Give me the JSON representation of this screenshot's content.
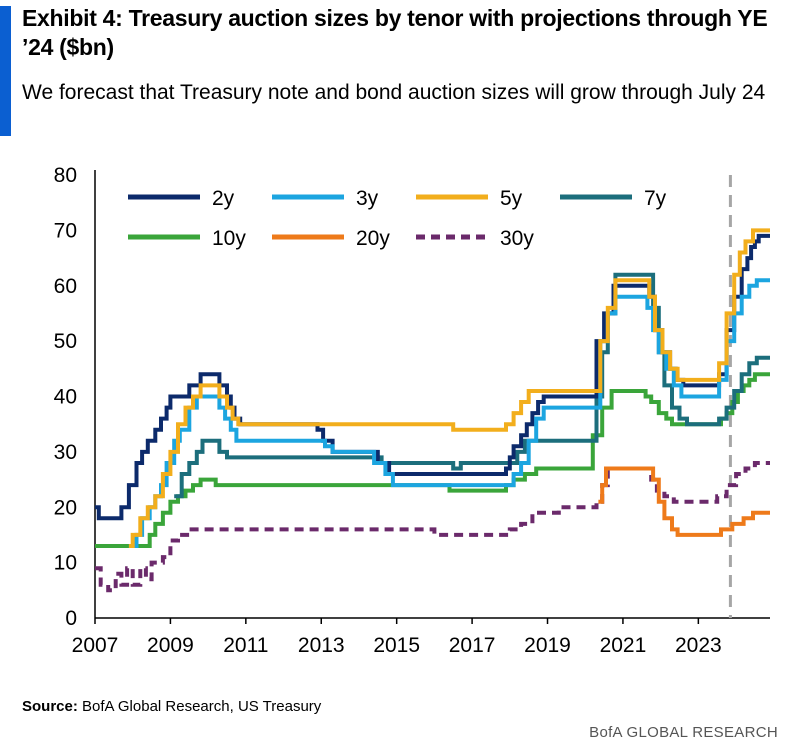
{
  "header": {
    "title": "Exhibit 4: Treasury auction sizes by tenor with projections through YE ’24 ($bn)",
    "subtitle": "We forecast that Treasury note and bond auction sizes will grow through July 24"
  },
  "footer": {
    "source_label": "Source:",
    "source_text": "BofA Global Research, US Treasury",
    "brand": "BofA GLOBAL RESEARCH"
  },
  "chart_data": {
    "type": "line",
    "title": "",
    "xlabel": "",
    "ylabel": "",
    "xlim": [
      2007,
      2024.9
    ],
    "ylim": [
      0,
      80
    ],
    "x_ticks": [
      2007,
      2009,
      2011,
      2013,
      2015,
      2017,
      2019,
      2021,
      2023
    ],
    "y_ticks": [
      0,
      10,
      20,
      30,
      40,
      50,
      60,
      70,
      80
    ],
    "grid": false,
    "legend_position": "top",
    "projection_marker_x": 2023.85,
    "series": [
      {
        "name": "2y",
        "color": "#0c2a6b",
        "dash": false,
        "steps": [
          [
            2007,
            20
          ],
          [
            2007.1,
            18
          ],
          [
            2007.7,
            20
          ],
          [
            2007.9,
            24
          ],
          [
            2008.1,
            28
          ],
          [
            2008.25,
            30
          ],
          [
            2008.4,
            32
          ],
          [
            2008.6,
            34
          ],
          [
            2008.75,
            36
          ],
          [
            2008.9,
            38
          ],
          [
            2009.0,
            40
          ],
          [
            2009.5,
            42
          ],
          [
            2009.8,
            44
          ],
          [
            2010.3,
            42
          ],
          [
            2010.5,
            40
          ],
          [
            2010.6,
            38
          ],
          [
            2010.7,
            36
          ],
          [
            2010.85,
            35
          ],
          [
            2012.9,
            34
          ],
          [
            2013.05,
            32
          ],
          [
            2013.3,
            30
          ],
          [
            2014.5,
            28
          ],
          [
            2014.8,
            26
          ],
          [
            2016.5,
            26
          ],
          [
            2017.9,
            27
          ],
          [
            2018.0,
            29
          ],
          [
            2018.1,
            31
          ],
          [
            2018.3,
            33
          ],
          [
            2018.45,
            35
          ],
          [
            2018.6,
            37
          ],
          [
            2018.75,
            39
          ],
          [
            2018.9,
            40
          ],
          [
            2020.3,
            50
          ],
          [
            2020.5,
            55
          ],
          [
            2020.75,
            60
          ],
          [
            2021.7,
            58
          ],
          [
            2021.85,
            52
          ],
          [
            2022.05,
            48
          ],
          [
            2022.25,
            45
          ],
          [
            2022.4,
            43
          ],
          [
            2022.6,
            42
          ],
          [
            2023.55,
            44
          ],
          [
            2023.75,
            52
          ],
          [
            2023.95,
            58
          ],
          [
            2024.15,
            63
          ],
          [
            2024.3,
            65
          ],
          [
            2024.4,
            67
          ],
          [
            2024.5,
            68
          ],
          [
            2024.6,
            69
          ],
          [
            2024.9,
            69
          ]
        ]
      },
      {
        "name": "3y",
        "color": "#1ca5e0",
        "dash": false,
        "steps": [
          [
            2007.9,
            13
          ],
          [
            2008.1,
            15
          ],
          [
            2008.25,
            18
          ],
          [
            2008.45,
            20
          ],
          [
            2008.6,
            22
          ],
          [
            2008.75,
            24
          ],
          [
            2008.9,
            28
          ],
          [
            2009.1,
            32
          ],
          [
            2009.25,
            34
          ],
          [
            2009.5,
            38
          ],
          [
            2009.7,
            40
          ],
          [
            2010.3,
            38
          ],
          [
            2010.45,
            36
          ],
          [
            2010.6,
            34
          ],
          [
            2010.75,
            32
          ],
          [
            2012.9,
            32
          ],
          [
            2013.1,
            31
          ],
          [
            2013.3,
            30
          ],
          [
            2014.4,
            28
          ],
          [
            2014.7,
            26
          ],
          [
            2014.9,
            24
          ],
          [
            2016.6,
            24
          ],
          [
            2017.9,
            24
          ],
          [
            2018.1,
            26
          ],
          [
            2018.3,
            28
          ],
          [
            2018.5,
            32
          ],
          [
            2018.7,
            36
          ],
          [
            2018.9,
            38
          ],
          [
            2020.4,
            50
          ],
          [
            2020.6,
            55
          ],
          [
            2020.8,
            58
          ],
          [
            2021.65,
            56
          ],
          [
            2021.8,
            52
          ],
          [
            2021.95,
            48
          ],
          [
            2022.15,
            45
          ],
          [
            2022.35,
            42
          ],
          [
            2022.55,
            40
          ],
          [
            2023.55,
            43
          ],
          [
            2023.75,
            50
          ],
          [
            2023.95,
            55
          ],
          [
            2024.15,
            58
          ],
          [
            2024.35,
            60
          ],
          [
            2024.55,
            61
          ],
          [
            2024.9,
            61
          ]
        ]
      },
      {
        "name": "5y",
        "color": "#f2ae1c",
        "dash": false,
        "steps": [
          [
            2007.9,
            13
          ],
          [
            2008.0,
            15
          ],
          [
            2008.2,
            18
          ],
          [
            2008.4,
            20
          ],
          [
            2008.6,
            22
          ],
          [
            2008.8,
            26
          ],
          [
            2009.0,
            30
          ],
          [
            2009.2,
            35
          ],
          [
            2009.4,
            38
          ],
          [
            2009.6,
            40
          ],
          [
            2009.8,
            42
          ],
          [
            2010.3,
            40
          ],
          [
            2010.5,
            38
          ],
          [
            2010.65,
            36
          ],
          [
            2010.8,
            35
          ],
          [
            2016.5,
            34
          ],
          [
            2017.9,
            35
          ],
          [
            2018.1,
            37
          ],
          [
            2018.3,
            39
          ],
          [
            2018.5,
            41
          ],
          [
            2020.4,
            50
          ],
          [
            2020.6,
            56
          ],
          [
            2020.8,
            61
          ],
          [
            2021.7,
            58
          ],
          [
            2021.85,
            52
          ],
          [
            2022.05,
            48
          ],
          [
            2022.25,
            45
          ],
          [
            2022.45,
            43
          ],
          [
            2023.55,
            46
          ],
          [
            2023.75,
            55
          ],
          [
            2023.95,
            62
          ],
          [
            2024.1,
            66
          ],
          [
            2024.25,
            68
          ],
          [
            2024.45,
            70
          ],
          [
            2024.9,
            70
          ]
        ]
      },
      {
        "name": "7y",
        "color": "#1c6e7c",
        "dash": false,
        "steps": [
          [
            2009.1,
            22
          ],
          [
            2009.3,
            26
          ],
          [
            2009.5,
            28
          ],
          [
            2009.7,
            30
          ],
          [
            2009.85,
            32
          ],
          [
            2010.3,
            30
          ],
          [
            2010.5,
            29
          ],
          [
            2014.6,
            28
          ],
          [
            2016.5,
            27
          ],
          [
            2016.7,
            28
          ],
          [
            2018.0,
            28
          ],
          [
            2018.2,
            30
          ],
          [
            2018.4,
            32
          ],
          [
            2020.3,
            40
          ],
          [
            2020.45,
            48
          ],
          [
            2020.6,
            55
          ],
          [
            2020.8,
            62
          ],
          [
            2021.8,
            56
          ],
          [
            2021.95,
            48
          ],
          [
            2022.1,
            42
          ],
          [
            2022.3,
            38
          ],
          [
            2022.5,
            36
          ],
          [
            2022.7,
            35
          ],
          [
            2023.55,
            36
          ],
          [
            2023.75,
            38
          ],
          [
            2023.95,
            41
          ],
          [
            2024.15,
            44
          ],
          [
            2024.35,
            46
          ],
          [
            2024.55,
            47
          ],
          [
            2024.9,
            47
          ]
        ]
      },
      {
        "name": "10y",
        "color": "#3aa53a",
        "dash": false,
        "steps": [
          [
            2007,
            13
          ],
          [
            2008.25,
            13
          ],
          [
            2008.45,
            15
          ],
          [
            2008.6,
            17
          ],
          [
            2008.8,
            19
          ],
          [
            2009.0,
            21
          ],
          [
            2009.2,
            22
          ],
          [
            2009.4,
            23
          ],
          [
            2009.6,
            24
          ],
          [
            2009.8,
            25
          ],
          [
            2010.2,
            24
          ],
          [
            2015.3,
            24
          ],
          [
            2016.4,
            23
          ],
          [
            2017.9,
            24
          ],
          [
            2018.1,
            25
          ],
          [
            2018.4,
            26
          ],
          [
            2018.7,
            27
          ],
          [
            2020.2,
            33
          ],
          [
            2020.45,
            38
          ],
          [
            2020.7,
            41
          ],
          [
            2021.6,
            40
          ],
          [
            2021.75,
            39
          ],
          [
            2021.95,
            37
          ],
          [
            2022.15,
            36
          ],
          [
            2022.3,
            35
          ],
          [
            2023.6,
            36
          ],
          [
            2023.75,
            37
          ],
          [
            2023.9,
            39
          ],
          [
            2024.05,
            41
          ],
          [
            2024.2,
            42
          ],
          [
            2024.35,
            43
          ],
          [
            2024.5,
            44
          ],
          [
            2024.9,
            44
          ]
        ]
      },
      {
        "name": "20y",
        "color": "#ee7a1a",
        "dash": false,
        "steps": [
          [
            2020.35,
            21
          ],
          [
            2020.45,
            24
          ],
          [
            2020.55,
            27
          ],
          [
            2021.8,
            25
          ],
          [
            2021.95,
            21
          ],
          [
            2022.1,
            18
          ],
          [
            2022.3,
            16
          ],
          [
            2022.45,
            15
          ],
          [
            2023.6,
            16
          ],
          [
            2023.9,
            17
          ],
          [
            2024.2,
            18
          ],
          [
            2024.45,
            19
          ],
          [
            2024.9,
            19
          ]
        ]
      },
      {
        "name": "30y",
        "color": "#6b2a6b",
        "dash": true,
        "steps": [
          [
            2007,
            9
          ],
          [
            2007.15,
            6
          ],
          [
            2007.35,
            5
          ],
          [
            2007.55,
            8
          ],
          [
            2007.7,
            6
          ],
          [
            2007.85,
            9
          ],
          [
            2008.0,
            6
          ],
          [
            2008.2,
            9
          ],
          [
            2008.35,
            7
          ],
          [
            2008.5,
            10
          ],
          [
            2008.8,
            11
          ],
          [
            2009.0,
            14
          ],
          [
            2009.2,
            15
          ],
          [
            2009.5,
            16
          ],
          [
            2014.5,
            16
          ],
          [
            2016.0,
            15
          ],
          [
            2017.8,
            15
          ],
          [
            2018.0,
            16
          ],
          [
            2018.3,
            17
          ],
          [
            2018.6,
            19
          ],
          [
            2019.3,
            20
          ],
          [
            2020.3,
            21
          ],
          [
            2020.45,
            24
          ],
          [
            2020.6,
            27
          ],
          [
            2021.75,
            25
          ],
          [
            2021.9,
            23
          ],
          [
            2022.1,
            22
          ],
          [
            2022.35,
            21
          ],
          [
            2023.5,
            22
          ],
          [
            2023.75,
            24
          ],
          [
            2024.0,
            26
          ],
          [
            2024.25,
            27
          ],
          [
            2024.5,
            28
          ],
          [
            2024.9,
            28
          ]
        ]
      }
    ]
  }
}
